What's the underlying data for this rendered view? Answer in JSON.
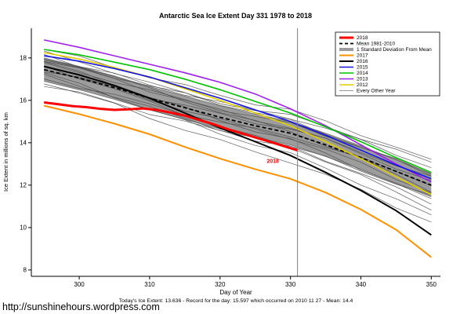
{
  "footer": {
    "stats": "Today's Ice Extent: 13.636 - Record for the day: 15.597 which occurred on 2010 11 27 - Mean: 14.4",
    "url": "http://sunshinehours.wordpress.com"
  },
  "chart_data": {
    "type": "line",
    "title": "Antarctic Sea Ice Extent Day 331 1978 to 2018",
    "xlabel": "Day of Year",
    "ylabel": "Ice Extent in millions of sq. km",
    "xlim": [
      293.2,
      351.3
    ],
    "ylim": [
      7.7,
      19.4
    ],
    "xticks": [
      300,
      310,
      320,
      330,
      340,
      350
    ],
    "yticks": [
      8,
      10,
      12,
      14,
      16,
      18
    ],
    "grid": false,
    "vline_x": 331,
    "annotation": {
      "text": "2018",
      "x": 327.5,
      "y": 13.05,
      "color": "#ff0000"
    },
    "x": [
      295,
      300,
      305,
      310,
      315,
      320,
      325,
      330,
      335,
      340,
      345,
      350
    ],
    "mean": {
      "label": "Mean 1981-2010",
      "color": "#000000",
      "width": 1.8,
      "dash": "5,3",
      "values": [
        17.45,
        17.05,
        16.6,
        16.1,
        15.65,
        15.2,
        14.8,
        14.45,
        13.9,
        13.3,
        12.65,
        12.0
      ]
    },
    "std_band": {
      "label": "1 Standard Deviation From Mean",
      "color": "#9c9c9c",
      "edge_color": "#6e6e6e",
      "half_width": 0.55
    },
    "series": [
      {
        "label": "2012",
        "color": "#e3cc00",
        "width": 1.6,
        "values": [
          18.25,
          17.95,
          17.55,
          17.1,
          16.55,
          16.0,
          15.4,
          14.8,
          14.05,
          13.25,
          12.4,
          11.55
        ]
      },
      {
        "label": "2013",
        "color": "#a020f0",
        "width": 1.6,
        "values": [
          18.85,
          18.5,
          18.1,
          17.7,
          17.3,
          16.85,
          16.3,
          15.6,
          14.8,
          13.9,
          13.0,
          12.15
        ]
      },
      {
        "label": "2014",
        "color": "#00c400",
        "width": 1.6,
        "values": [
          18.4,
          18.15,
          17.8,
          17.45,
          17.0,
          16.5,
          15.95,
          15.4,
          14.75,
          14.05,
          13.3,
          12.6
        ]
      },
      {
        "label": "2015",
        "color": "#1414e6",
        "width": 1.6,
        "values": [
          18.1,
          17.85,
          17.5,
          17.1,
          16.6,
          16.1,
          15.55,
          15.0,
          14.35,
          13.65,
          12.95,
          12.3
        ]
      },
      {
        "label": "2016",
        "color": "#000000",
        "width": 2,
        "values": [
          17.6,
          17.2,
          16.7,
          16.1,
          15.4,
          14.7,
          14.05,
          13.4,
          12.6,
          11.75,
          10.8,
          9.65
        ]
      },
      {
        "label": "2017",
        "color": "#ff9000",
        "width": 2,
        "values": [
          15.75,
          15.35,
          14.9,
          14.4,
          13.8,
          13.25,
          12.75,
          12.3,
          11.65,
          10.85,
          9.9,
          8.6
        ]
      },
      {
        "label": "2018",
        "color": "#ff0000",
        "width": 3,
        "x": [
          295,
          297,
          299,
          301,
          303,
          305,
          307,
          309,
          311,
          313,
          315,
          317,
          319,
          321,
          323,
          325,
          327,
          329,
          331
        ],
        "values": [
          15.9,
          15.82,
          15.73,
          15.68,
          15.6,
          15.55,
          15.58,
          15.62,
          15.55,
          15.42,
          15.28,
          15.08,
          14.88,
          14.65,
          14.45,
          14.25,
          14.05,
          13.85,
          13.64
        ]
      }
    ],
    "other_years": {
      "label": "Every Other Year",
      "color": "#4a4a4a",
      "start_offsets": [
        0.95,
        0.8,
        0.68,
        0.55,
        0.45,
        0.35,
        0.25,
        0.15,
        0.05,
        -0.05,
        -0.18,
        -0.3,
        -0.45,
        -0.6,
        -0.75,
        0.4
      ],
      "end_offsets": [
        1.15,
        0.45,
        -0.25,
        0.85,
        0.15,
        -0.7,
        0.55,
        -1.1,
        -0.35,
        0.35,
        -1.45,
        -0.85,
        0.05,
        -1.75,
        -0.55,
        1.05
      ]
    },
    "legend_box": {
      "x": 428,
      "y": 41,
      "w": 133,
      "h": 81
    },
    "legend_items": [
      {
        "label": "2018",
        "color": "#ff0000",
        "width": 3
      },
      {
        "label": "Mean 1981-2010",
        "color": "#000000",
        "width": 1.8,
        "dash": "4,3"
      },
      {
        "label": "1 Standard Deviation From Mean",
        "color": "#9c9c9c",
        "width": 4
      },
      {
        "label": "2017",
        "color": "#ff9000",
        "width": 2
      },
      {
        "label": "2016",
        "color": "#000000",
        "width": 2
      },
      {
        "label": "2015",
        "color": "#1414e6",
        "width": 1.6
      },
      {
        "label": "2014",
        "color": "#00c400",
        "width": 1.6
      },
      {
        "label": "2013",
        "color": "#a020f0",
        "width": 1.6
      },
      {
        "label": "2012",
        "color": "#e3cc00",
        "width": 1.6
      },
      {
        "label": "Every Other Year",
        "color": "#777777",
        "width": 0.8
      }
    ]
  }
}
